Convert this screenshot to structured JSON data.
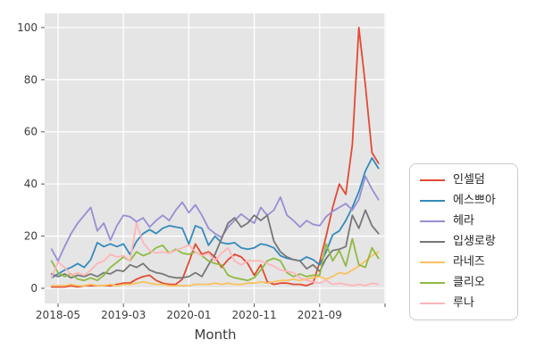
{
  "figure": {
    "background": "#ffffff",
    "plot_background": "#e5e5e5",
    "grid_color": "#ffffff",
    "tick_color": "#555555",
    "text_color": "#3d3d3d",
    "legend_border_color": "#cccccc"
  },
  "chart_data": {
    "type": "line",
    "title": "",
    "xlabel": "Month",
    "ylabel": "",
    "ylim": [
      0,
      100
    ],
    "grid": true,
    "style": "ggplot",
    "legend_position": "right-outside",
    "x": [
      "2018-04",
      "2018-05",
      "2018-06",
      "2018-07",
      "2018-08",
      "2018-09",
      "2018-10",
      "2018-11",
      "2018-12",
      "2019-01",
      "2019-02",
      "2019-03",
      "2019-04",
      "2019-05",
      "2019-06",
      "2019-07",
      "2019-08",
      "2019-09",
      "2019-10",
      "2019-11",
      "2019-12",
      "2020-01",
      "2020-02",
      "2020-03",
      "2020-04",
      "2020-05",
      "2020-06",
      "2020-07",
      "2020-08",
      "2020-09",
      "2020-10",
      "2020-11",
      "2020-12",
      "2021-01",
      "2021-02",
      "2021-03",
      "2021-04",
      "2021-05",
      "2021-06",
      "2021-07",
      "2021-08",
      "2021-09",
      "2021-10",
      "2021-11",
      "2021-12",
      "2022-01",
      "2022-02",
      "2022-03",
      "2022-04",
      "2022-05",
      "2022-06"
    ],
    "x_tick_labels": [
      "2018-05",
      "2019-03",
      "2020-01",
      "2020-11",
      "2021-09"
    ],
    "y_ticks": [
      0,
      20,
      40,
      60,
      80,
      100
    ],
    "series": [
      {
        "name": "인셀덤",
        "color": "#E24A33",
        "values": [
          0.5,
          0.5,
          0.5,
          1,
          0.5,
          1,
          1,
          1,
          1,
          1,
          1.5,
          2,
          2,
          3.5,
          4.5,
          5,
          3,
          2,
          1.5,
          1.5,
          3.5,
          10,
          17,
          13,
          14,
          12,
          8,
          11,
          13,
          12,
          9.5,
          5,
          9,
          2.5,
          1.5,
          2,
          2,
          1.5,
          1.5,
          1,
          2,
          10,
          20,
          31,
          40,
          36,
          55,
          100,
          78,
          52,
          48
        ]
      },
      {
        "name": "에스쁘아",
        "color": "#348ABD",
        "values": [
          4,
          5.5,
          7,
          8,
          9.5,
          8,
          11,
          17.5,
          16,
          17,
          16,
          17,
          13,
          18,
          21,
          22.5,
          21,
          23,
          24,
          23.5,
          23,
          17,
          24,
          23,
          16.5,
          20,
          17.5,
          17,
          17.5,
          15.5,
          15,
          15.5,
          17,
          16.5,
          15.5,
          12.5,
          11.5,
          11,
          10.5,
          12,
          11,
          9,
          14,
          20.5,
          22,
          26,
          31,
          37,
          45,
          50,
          46
        ]
      },
      {
        "name": "헤라",
        "color": "#988ED5",
        "values": [
          15,
          10.5,
          16,
          21,
          25,
          28,
          31,
          22,
          25,
          18.5,
          24,
          28,
          27.5,
          25.5,
          27,
          23.5,
          26,
          28,
          26,
          30,
          33,
          29,
          32,
          28,
          23,
          21,
          19.5,
          23.5,
          26,
          28.5,
          26.5,
          25,
          31,
          28,
          30,
          35,
          28,
          26,
          23.5,
          26,
          24.5,
          24,
          27.5,
          29.5,
          31,
          32.5,
          30,
          34,
          43,
          38,
          34
        ]
      },
      {
        "name": "입생로랑",
        "color": "#777777",
        "values": [
          5.5,
          4.5,
          5.5,
          4,
          5,
          4.5,
          5.5,
          4.5,
          6,
          5.5,
          7,
          6.5,
          9,
          8,
          9.5,
          7,
          6,
          5.5,
          4.5,
          4,
          4,
          4.5,
          6,
          4.5,
          9,
          13,
          19,
          25,
          27,
          23.5,
          25,
          28,
          26,
          28,
          18,
          14,
          12,
          11,
          10.5,
          7.5,
          9,
          6.5,
          11.5,
          14.5,
          15,
          16,
          28,
          23,
          30,
          24,
          21
        ]
      },
      {
        "name": "라네즈",
        "color": "#FBC15E",
        "values": [
          1,
          1,
          1,
          1.5,
          1,
          1,
          1.5,
          1,
          1,
          1.5,
          1,
          1.5,
          1.5,
          2,
          2.5,
          2,
          1.5,
          1.5,
          1,
          1,
          1,
          1,
          1.5,
          1.5,
          1.5,
          2,
          1.5,
          2,
          1.5,
          1.5,
          2,
          2,
          2.5,
          2,
          2.5,
          3,
          3,
          3.5,
          3,
          3.5,
          4,
          4.5,
          3.5,
          4.5,
          6,
          5.5,
          7,
          8.5,
          10.5,
          12.5,
          14
        ]
      },
      {
        "name": "클리오",
        "color": "#8EBA42",
        "values": [
          10.5,
          6,
          4.5,
          5.5,
          3.5,
          3,
          4,
          3,
          5,
          8,
          10,
          12,
          10.5,
          14,
          12.5,
          13.5,
          15.5,
          16.5,
          13.5,
          15,
          13.5,
          13,
          14,
          12.5,
          10.5,
          9.5,
          9,
          5,
          4,
          3.5,
          3,
          4,
          7,
          10.5,
          11.5,
          10.5,
          6,
          4.5,
          5.5,
          4.5,
          5,
          5,
          17,
          10.5,
          14.5,
          8.5,
          19,
          9,
          8,
          15.5,
          11.5
        ]
      },
      {
        "name": "루나",
        "color": "#FFB5B8",
        "values": [
          4,
          10,
          8,
          5,
          6,
          5,
          7,
          9.5,
          10.5,
          13,
          12,
          12.5,
          10.5,
          25,
          17.5,
          14.5,
          13.5,
          14,
          13.5,
          14.5,
          15.5,
          16.5,
          14,
          12.5,
          13.5,
          10.5,
          13.5,
          15.5,
          10.5,
          9,
          10.5,
          10.5,
          10.5,
          9.5,
          8.5,
          7,
          6.5,
          6,
          4,
          3,
          2.5,
          2,
          3,
          1.5,
          2,
          1.5,
          1,
          1.5,
          1,
          2,
          1.5
        ]
      }
    ]
  }
}
